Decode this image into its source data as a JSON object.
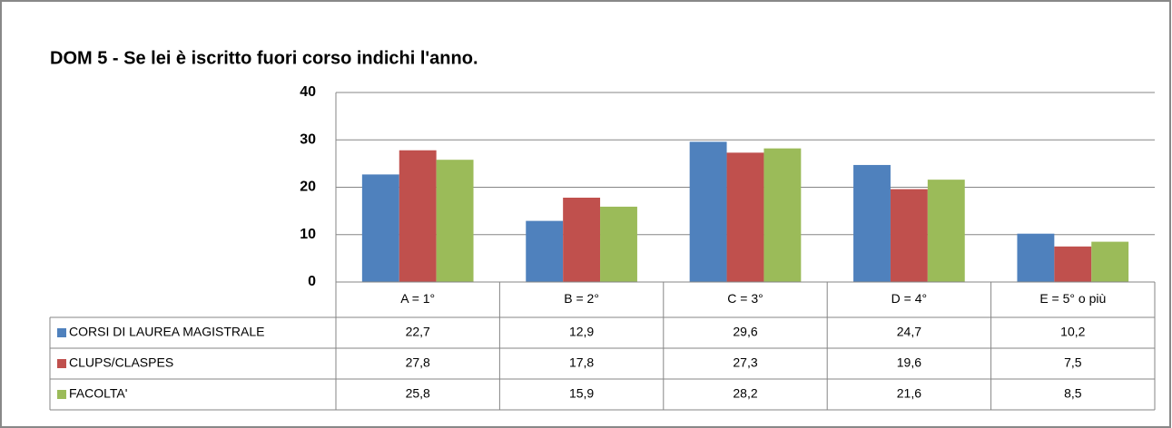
{
  "chart_data": {
    "type": "bar",
    "title": "DOM 5 - Se lei è iscritto fuori corso indichi l'anno.",
    "categories": [
      "A = 1°",
      "B = 2°",
      "C = 3°",
      "D = 4°",
      "E = 5° o più"
    ],
    "series": [
      {
        "name": "CORSI DI LAUREA MAGISTRALE",
        "color": "#4f81bd",
        "values": [
          22.7,
          12.9,
          29.6,
          24.7,
          10.2
        ],
        "value_labels": [
          "22,7",
          "12,9",
          "29,6",
          "24,7",
          "10,2"
        ]
      },
      {
        "name": "CLUPS/CLASPES",
        "color": "#c0504d",
        "values": [
          27.8,
          17.8,
          27.3,
          19.6,
          7.5
        ],
        "value_labels": [
          "27,8",
          "17,8",
          "27,3",
          "19,6",
          "7,5"
        ]
      },
      {
        "name": "FACOLTA'",
        "color": "#9bbb59",
        "values": [
          25.8,
          15.9,
          28.2,
          21.6,
          8.5
        ],
        "value_labels": [
          "25,8",
          "15,9",
          "28,2",
          "21,6",
          "8,5"
        ]
      }
    ],
    "ylim": [
      0,
      40
    ],
    "yticks": [
      0,
      10,
      20,
      30,
      40
    ],
    "grid": true,
    "legend": "table"
  }
}
